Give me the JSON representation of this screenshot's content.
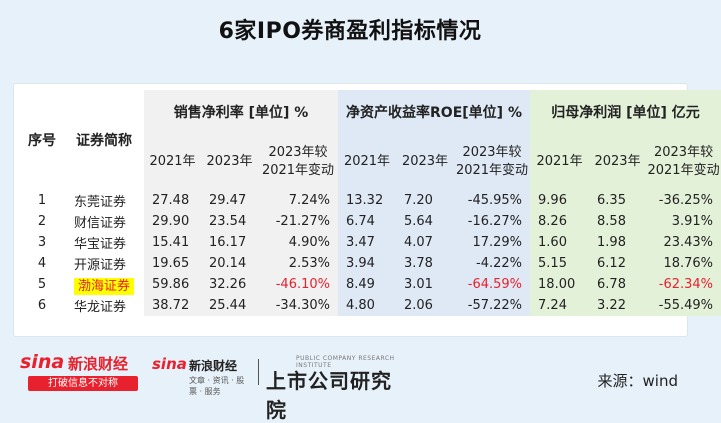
{
  "title": "6家IPO券商盈利指标情况",
  "headers": {
    "index": "序号",
    "name": "证券简称",
    "group1": "销售净利率 [单位] %",
    "group2": "净资产收益率ROE[单位] %",
    "group3": "归母净利润 [单位] 亿元",
    "y2021": "2021年",
    "y2023": "2023年",
    "change_line1": "2023年较",
    "change_line2": "2021年变动"
  },
  "rows": [
    {
      "idx": "1",
      "name": "东莞证券",
      "npm21": "27.48",
      "npm23": "29.47",
      "npmChg": "7.24%",
      "roe21": "13.32",
      "roe23": "7.20",
      "roeChg": "-45.95%",
      "np21": "9.96",
      "np23": "6.35",
      "npChg": "-36.25%"
    },
    {
      "idx": "2",
      "name": "财信证券",
      "npm21": "29.90",
      "npm23": "23.54",
      "npmChg": "-21.27%",
      "roe21": "6.74",
      "roe23": "5.64",
      "roeChg": "-16.27%",
      "np21": "8.26",
      "np23": "8.58",
      "npChg": "3.91%"
    },
    {
      "idx": "3",
      "name": "华宝证券",
      "npm21": "15.41",
      "npm23": "16.17",
      "npmChg": "4.90%",
      "roe21": "3.47",
      "roe23": "4.07",
      "roeChg": "17.29%",
      "np21": "1.60",
      "np23": "1.98",
      "npChg": "23.43%"
    },
    {
      "idx": "4",
      "name": "开源证券",
      "npm21": "19.65",
      "npm23": "20.14",
      "npmChg": "2.53%",
      "roe21": "3.94",
      "roe23": "3.78",
      "roeChg": "-4.22%",
      "np21": "5.15",
      "np23": "6.12",
      "npChg": "18.76%"
    },
    {
      "idx": "5",
      "name": "渤海证券",
      "npm21": "59.86",
      "npm23": "32.26",
      "npmChg": "-46.10%",
      "roe21": "8.49",
      "roe23": "3.01",
      "roeChg": "-64.59%",
      "np21": "18.00",
      "np23": "6.78",
      "npChg": "-62.34%"
    },
    {
      "idx": "6",
      "name": "华龙证券",
      "npm21": "38.72",
      "npm23": "25.44",
      "npmChg": "-34.30%",
      "roe21": "4.80",
      "roe23": "2.06",
      "roeChg": "-57.22%",
      "np21": "7.24",
      "np23": "3.22",
      "npChg": "-55.49%"
    }
  ],
  "highlight": {
    "row": 4,
    "name_bg": "#ffff00",
    "accent": "#e8212e"
  },
  "footer": {
    "logo1_sina": "sina",
    "logo1_name": "新浪财经",
    "logo1_slogan": "打破信息不对称",
    "logo2_sina": "sina",
    "logo2_name": "新浪财经",
    "logo2_sub": "文章 · 资讯 · 股票 · 服务",
    "logo3_tiny": "PUBLIC COMPANY RESEARCH INSTITUTE",
    "logo3_name": "上市公司研究院",
    "source": "来源：wind"
  }
}
